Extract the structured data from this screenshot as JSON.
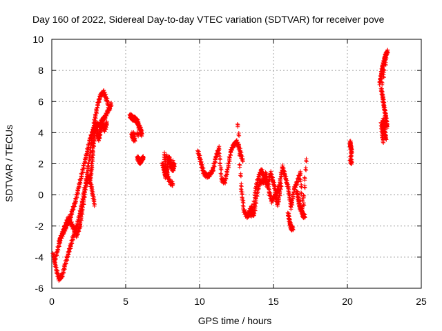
{
  "chart_data": {
    "type": "scatter",
    "title": "Day 160 of 2022, Sidereal Day-to-day VTEC variation (SDTVAR) for receiver pove",
    "xlabel": "GPS time / hours",
    "ylabel": "SDTVAR / TECUs",
    "xlim": [
      0,
      25
    ],
    "ylim": [
      -6,
      10
    ],
    "xticks": [
      "0",
      "5",
      "10",
      "15",
      "20",
      "25"
    ],
    "yticks": [
      "-6",
      "-4",
      "-2",
      "0",
      "2",
      "4",
      "6",
      "8",
      "10"
    ],
    "grid": true,
    "marker": "+",
    "series": [
      {
        "name": "SDTVAR",
        "color": "#ff0000",
        "segments": [
          {
            "x": [
              0.1,
              0.3,
              0.5,
              0.7,
              0.9,
              1.1,
              1.3,
              1.5,
              1.7,
              1.9,
              2.1,
              2.3,
              2.5,
              2.7,
              2.9,
              3.1,
              3.3,
              3.5,
              3.7,
              3.9
            ],
            "y": [
              -3.8,
              -4.8,
              -5.4,
              -5.2,
              -4.5,
              -3.8,
              -3.2,
              -2.5,
              -2.0,
              -1.2,
              -0.3,
              0.8,
              2.0,
              3.5,
              4.8,
              5.8,
              6.4,
              6.6,
              6.2,
              5.5
            ]
          },
          {
            "x": [
              0.2,
              0.4,
              0.6,
              0.8,
              1.0,
              1.2,
              1.4,
              1.6,
              1.8,
              2.0,
              2.2,
              2.4,
              2.6,
              2.8,
              3.0,
              3.2,
              3.4,
              3.6,
              3.8,
              4.0
            ],
            "y": [
              -4.2,
              -3.5,
              -2.8,
              -2.4,
              -2.0,
              -1.6,
              -1.0,
              -0.4,
              0.4,
              1.2,
              2.0,
              2.8,
              3.6,
              4.2,
              4.6,
              4.4,
              4.8,
              5.0,
              5.4,
              5.8
            ]
          },
          {
            "x": [
              0.5,
              0.7,
              0.9,
              1.1,
              1.3,
              1.5,
              1.7,
              1.9,
              2.1,
              2.3,
              2.5,
              2.7,
              2.9
            ],
            "y": [
              -3.0,
              -2.5,
              -2.0,
              -1.5,
              -1.8,
              -2.2,
              -2.6,
              -2.0,
              -0.8,
              0.6,
              1.2,
              0.4,
              -0.6
            ]
          },
          {
            "x": [
              2.6,
              2.7,
              2.8,
              2.9,
              3.0,
              3.1,
              3.2,
              3.3,
              3.4,
              3.5,
              3.6,
              3.7
            ],
            "y": [
              1.0,
              1.8,
              3.0,
              4.0,
              4.6,
              3.8,
              3.6,
              4.2,
              4.6,
              4.4,
              4.2,
              4.6
            ]
          },
          {
            "x": [
              5.3,
              5.4,
              5.5,
              5.6,
              5.7,
              5.8,
              5.9,
              6.0,
              6.1,
              5.4,
              5.5,
              5.6
            ],
            "y": [
              5.1,
              5.0,
              4.9,
              4.9,
              4.8,
              4.7,
              4.4,
              4.2,
              3.9,
              3.9,
              3.7,
              3.5
            ]
          },
          {
            "x": [
              5.8,
              5.9,
              6.0,
              6.1,
              6.2
            ],
            "y": [
              2.4,
              2.2,
              2.1,
              2.3,
              2.4
            ]
          },
          {
            "x": [
              7.5,
              7.6,
              7.7,
              7.8,
              7.9,
              8.0,
              8.1,
              8.2,
              8.3,
              7.6,
              7.8,
              8.0,
              8.2
            ],
            "y": [
              2.0,
              1.6,
              1.2,
              1.5,
              2.4,
              2.1,
              1.8,
              1.6,
              2.0,
              2.6,
              1.3,
              0.8,
              0.7
            ]
          },
          {
            "x": [
              9.9,
              10.1,
              10.3,
              10.5,
              10.7,
              10.9,
              11.1,
              11.3,
              11.5,
              11.7,
              11.9,
              12.1,
              12.3,
              12.5,
              12.7,
              12.9
            ],
            "y": [
              2.8,
              2.0,
              1.4,
              1.2,
              1.3,
              1.6,
              2.4,
              3.0,
              1.0,
              0.8,
              1.6,
              2.8,
              3.2,
              3.4,
              3.0,
              2.2
            ]
          },
          {
            "x": [
              12.6,
              12.8,
              13.0,
              13.2,
              13.4,
              13.6,
              13.8,
              14.0,
              14.2,
              14.4,
              14.6,
              14.8,
              15.0,
              15.2,
              15.4,
              15.6,
              15.8,
              16.0,
              16.2,
              16.4,
              16.6,
              16.8,
              17.0,
              17.2
            ],
            "y": [
              4.5,
              0.6,
              -1.0,
              -1.4,
              -1.2,
              -1.3,
              0.4,
              1.2,
              1.6,
              1.0,
              0.6,
              1.4,
              0.8,
              0.0,
              0.6,
              1.8,
              1.2,
              0.4,
              -0.8,
              0.4,
              0.8,
              1.4,
              -1.2,
              2.2
            ]
          },
          {
            "x": [
              13.3,
              13.5,
              13.7,
              13.9,
              14.1,
              14.3,
              14.5,
              14.7,
              14.9,
              15.1,
              15.3,
              15.5
            ],
            "y": [
              -1.2,
              -0.8,
              -1.2,
              0.2,
              0.9,
              0.8,
              1.4,
              0.2,
              -0.4,
              0.0,
              -0.6,
              0.6
            ]
          },
          {
            "x": [
              16.0,
              16.1,
              16.2,
              16.3
            ],
            "y": [
              -1.2,
              -1.8,
              -2.1,
              -2.2
            ]
          },
          {
            "x": [
              16.6,
              16.7,
              16.8,
              16.9,
              17.0,
              17.1
            ],
            "y": [
              0.2,
              -0.4,
              -0.8,
              -1.0,
              -1.3,
              -1.4
            ]
          },
          {
            "x": [
              20.2,
              20.2,
              20.3,
              20.2,
              20.3
            ],
            "y": [
              3.4,
              3.1,
              2.9,
              2.2,
              2.1
            ]
          },
          {
            "x": [
              22.2,
              22.3,
              22.4,
              22.5,
              22.6,
              22.7,
              22.3,
              22.4,
              22.5,
              22.6,
              22.7,
              22.4,
              22.5,
              22.6,
              22.3,
              22.4
            ],
            "y": [
              7.2,
              7.8,
              8.3,
              8.7,
              9.0,
              9.2,
              6.8,
              6.2,
              5.6,
              5.0,
              4.4,
              4.8,
              4.2,
              3.6,
              4.6,
              3.4
            ]
          }
        ]
      }
    ]
  }
}
